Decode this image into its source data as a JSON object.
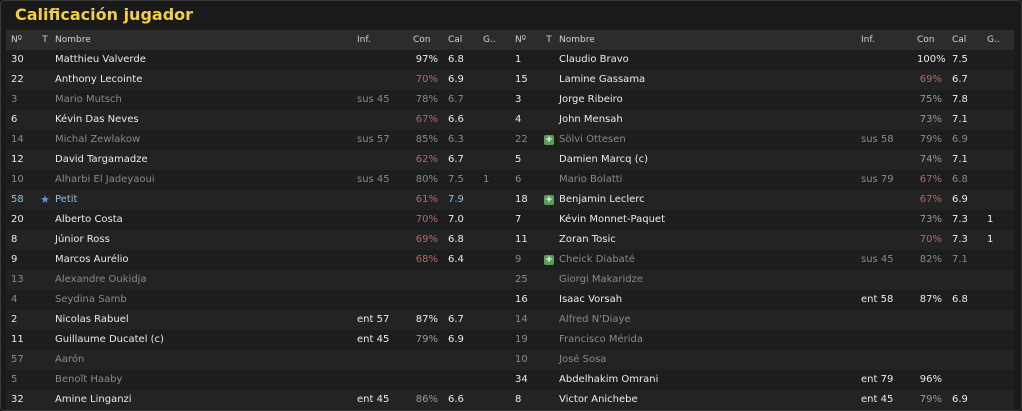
{
  "title": "Calificación jugador",
  "columns": {
    "num": "Nº",
    "type": "T",
    "name": "Nombre",
    "inf": "Inf.",
    "con": "Con",
    "cal": "Cal",
    "goals": "G.."
  },
  "icons": {
    "favorite": "star-icon",
    "new": "plus-icon"
  },
  "left": [
    {
      "num": "30",
      "name": "Matthieu Valverde",
      "inf": "",
      "con": "97%",
      "cal": "6.8",
      "g": "",
      "dim": false,
      "con_style": "normal"
    },
    {
      "num": "22",
      "name": "Anthony Lecointe",
      "inf": "",
      "con": "70%",
      "cal": "6.9",
      "g": "",
      "dim": false,
      "con_style": "low"
    },
    {
      "num": "3",
      "name": "Mario Mutsch",
      "inf": "sus 45",
      "con": "78%",
      "cal": "6.7",
      "g": "",
      "dim": true,
      "con_style": "normal"
    },
    {
      "num": "6",
      "name": "Kévin Das Neves",
      "inf": "",
      "con": "67%",
      "cal": "6.6",
      "g": "",
      "dim": false,
      "con_style": "low"
    },
    {
      "num": "14",
      "name": "Michal Zewlakow",
      "inf": "sus 57",
      "con": "85%",
      "cal": "6.3",
      "g": "",
      "dim": true,
      "con_style": "normal"
    },
    {
      "num": "12",
      "name": "David Targamadze",
      "inf": "",
      "con": "62%",
      "cal": "6.7",
      "g": "",
      "dim": false,
      "con_style": "low"
    },
    {
      "num": "10",
      "name": "Alharbi El Jadeyaoui",
      "inf": "sus 45",
      "con": "80%",
      "cal": "7.5",
      "g": "1",
      "dim": true,
      "con_style": "normal"
    },
    {
      "num": "58",
      "name": "Petit",
      "inf": "",
      "con": "61%",
      "cal": "7.9",
      "g": "",
      "dim": false,
      "highlight": true,
      "icon": "star",
      "con_style": "low"
    },
    {
      "num": "20",
      "name": "Alberto Costa",
      "inf": "",
      "con": "70%",
      "cal": "7.0",
      "g": "",
      "dim": false,
      "con_style": "low"
    },
    {
      "num": "8",
      "name": "Júnior Ross",
      "inf": "",
      "con": "69%",
      "cal": "6.8",
      "g": "",
      "dim": false,
      "con_style": "low"
    },
    {
      "num": "9",
      "name": "Marcos Aurélio",
      "inf": "",
      "con": "68%",
      "cal": "6.4",
      "g": "",
      "dim": false,
      "con_style": "low"
    },
    {
      "num": "13",
      "name": "Alexandre Oukidja",
      "inf": "",
      "con": "",
      "cal": "",
      "g": "",
      "dim": true,
      "con_style": "normal"
    },
    {
      "num": "4",
      "name": "Seydina Samb",
      "inf": "",
      "con": "",
      "cal": "",
      "g": "",
      "dim": true,
      "con_style": "normal"
    },
    {
      "num": "2",
      "name": "Nicolas Rabuel",
      "inf": "ent 57",
      "con": "87%",
      "cal": "6.7",
      "g": "",
      "dim": false,
      "con_style": "normal"
    },
    {
      "num": "11",
      "name": "Guillaume Ducatel (c)",
      "inf": "ent 45",
      "con": "79%",
      "cal": "6.9",
      "g": "",
      "dim": false,
      "con_style": "mid"
    },
    {
      "num": "57",
      "name": "Aarón",
      "inf": "",
      "con": "",
      "cal": "",
      "g": "",
      "dim": true,
      "con_style": "normal"
    },
    {
      "num": "5",
      "name": "Benoît Haaby",
      "inf": "",
      "con": "",
      "cal": "",
      "g": "",
      "dim": true,
      "con_style": "normal"
    },
    {
      "num": "32",
      "name": "Amine Linganzi",
      "inf": "ent 45",
      "con": "86%",
      "cal": "6.6",
      "g": "",
      "dim": false,
      "con_style": "mid"
    }
  ],
  "right": [
    {
      "num": "1",
      "name": "Claudio Bravo",
      "inf": "",
      "con": "100%",
      "cal": "7.5",
      "g": "",
      "dim": false,
      "con_style": "normal"
    },
    {
      "num": "15",
      "name": "Lamine Gassama",
      "inf": "",
      "con": "69%",
      "cal": "6.7",
      "g": "",
      "dim": false,
      "con_style": "low"
    },
    {
      "num": "3",
      "name": "Jorge Ribeiro",
      "inf": "",
      "con": "75%",
      "cal": "7.8",
      "g": "",
      "dim": false,
      "con_style": "mid"
    },
    {
      "num": "4",
      "name": "John Mensah",
      "inf": "",
      "con": "73%",
      "cal": "7.1",
      "g": "",
      "dim": false,
      "con_style": "mid"
    },
    {
      "num": "22",
      "name": "Sölvi Ottesen",
      "inf": "sus 58",
      "con": "79%",
      "cal": "6.9",
      "g": "",
      "dim": true,
      "icon": "plus",
      "con_style": "normal"
    },
    {
      "num": "5",
      "name": "Damien Marcq (c)",
      "inf": "",
      "con": "74%",
      "cal": "7.1",
      "g": "",
      "dim": false,
      "con_style": "mid"
    },
    {
      "num": "6",
      "name": "Mario Bolatti",
      "inf": "sus 79",
      "con": "67%",
      "cal": "6.8",
      "g": "",
      "dim": true,
      "con_style": "low"
    },
    {
      "num": "18",
      "name": "Benjamin Leclerc",
      "inf": "",
      "con": "67%",
      "cal": "6.9",
      "g": "",
      "dim": false,
      "icon": "plus",
      "con_style": "low"
    },
    {
      "num": "7",
      "name": "Kévin Monnet-Paquet",
      "inf": "",
      "con": "73%",
      "cal": "7.3",
      "g": "1",
      "dim": false,
      "con_style": "mid"
    },
    {
      "num": "11",
      "name": "Zoran Tosic",
      "inf": "",
      "con": "70%",
      "cal": "7.3",
      "g": "1",
      "dim": false,
      "con_style": "low"
    },
    {
      "num": "9",
      "name": "Cheick Diabaté",
      "inf": "sus 45",
      "con": "82%",
      "cal": "7.1",
      "g": "",
      "dim": true,
      "icon": "plus",
      "con_style": "normal"
    },
    {
      "num": "25",
      "name": "Giorgi Makaridze",
      "inf": "",
      "con": "",
      "cal": "",
      "g": "",
      "dim": true,
      "con_style": "normal"
    },
    {
      "num": "16",
      "name": "Isaac Vorsah",
      "inf": "ent 58",
      "con": "87%",
      "cal": "6.8",
      "g": "",
      "dim": false,
      "con_style": "normal"
    },
    {
      "num": "14",
      "name": "Alfred N'Diaye",
      "inf": "",
      "con": "",
      "cal": "",
      "g": "",
      "dim": true,
      "con_style": "normal"
    },
    {
      "num": "19",
      "name": "Francisco Mérida",
      "inf": "",
      "con": "",
      "cal": "",
      "g": "",
      "dim": true,
      "con_style": "normal"
    },
    {
      "num": "10",
      "name": "José Sosa",
      "inf": "",
      "con": "",
      "cal": "",
      "g": "",
      "dim": true,
      "con_style": "normal"
    },
    {
      "num": "34",
      "name": "Abdelhakim Omrani",
      "inf": "ent 79",
      "con": "96%",
      "cal": "",
      "g": "",
      "dim": false,
      "con_style": "normal"
    },
    {
      "num": "8",
      "name": "Victor Anichebe",
      "inf": "ent 45",
      "con": "79%",
      "cal": "6.9",
      "g": "",
      "dim": false,
      "con_style": "mid"
    }
  ]
}
